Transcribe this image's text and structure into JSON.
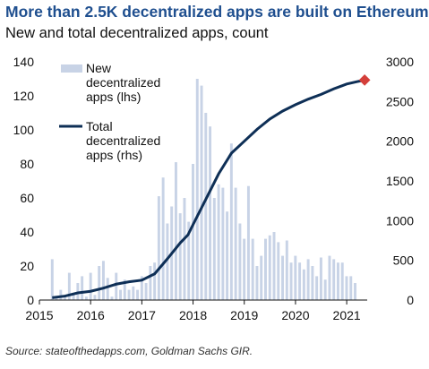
{
  "chart_data": {
    "type": "bar",
    "title": "More than 2.5K decentralized apps are built on Ethereum",
    "subtitle": "New and total decentralized apps, count",
    "source": "Source: stateofthedapps.com, Goldman Sachs GIR.",
    "x_ticks": [
      "2015",
      "2016",
      "2017",
      "2018",
      "2019",
      "2020",
      "2021"
    ],
    "y_left": {
      "ticks": [
        0,
        20,
        40,
        60,
        80,
        100,
        120,
        140
      ],
      "range": [
        0,
        140
      ]
    },
    "y_right": {
      "ticks": [
        0,
        500,
        1000,
        1500,
        2000,
        2500,
        3000
      ],
      "range": [
        0,
        3000
      ]
    },
    "x_range": [
      2015,
      2021.4
    ],
    "legend_placement": "top-center",
    "grid": false,
    "colors": {
      "bars": "#c8d3e6",
      "line": "#0e2f56",
      "marker": "#d43f3a",
      "title": "#1f4f8f"
    },
    "series": [
      {
        "name_lines": [
          "New",
          "decentralized",
          "apps (lhs)"
        ],
        "kind": "bar",
        "axis": "left",
        "x_start": 2015.25,
        "x_step": 0.0833,
        "values": [
          24,
          2,
          6,
          2,
          16,
          4,
          10,
          14,
          2,
          16,
          3,
          20,
          23,
          13,
          2,
          16,
          6,
          12,
          6,
          8,
          6,
          14,
          10,
          20,
          22,
          61,
          72,
          45,
          55,
          81,
          51,
          60,
          46,
          80,
          130,
          126,
          110,
          102,
          60,
          68,
          66,
          52,
          92,
          66,
          45,
          36,
          67,
          36,
          20,
          26,
          36,
          38,
          40,
          34,
          26,
          35,
          22,
          26,
          22,
          18,
          24,
          20,
          14,
          25,
          12,
          26,
          24,
          22,
          22,
          14,
          14,
          10
        ]
      },
      {
        "name_lines": [
          "Total",
          "decentralized",
          "apps (rhs)"
        ],
        "kind": "line",
        "axis": "right",
        "points": [
          [
            2015.25,
            30
          ],
          [
            2015.5,
            50
          ],
          [
            2015.75,
            90
          ],
          [
            2016.0,
            110
          ],
          [
            2016.25,
            150
          ],
          [
            2016.5,
            200
          ],
          [
            2016.75,
            230
          ],
          [
            2017.0,
            250
          ],
          [
            2017.25,
            330
          ],
          [
            2017.5,
            520
          ],
          [
            2017.75,
            720
          ],
          [
            2017.9,
            820
          ],
          [
            2018.0,
            950
          ],
          [
            2018.25,
            1270
          ],
          [
            2018.5,
            1590
          ],
          [
            2018.75,
            1850
          ],
          [
            2019.0,
            2000
          ],
          [
            2019.25,
            2150
          ],
          [
            2019.5,
            2280
          ],
          [
            2019.75,
            2380
          ],
          [
            2020.0,
            2460
          ],
          [
            2020.25,
            2530
          ],
          [
            2020.5,
            2590
          ],
          [
            2020.75,
            2660
          ],
          [
            2021.0,
            2720
          ],
          [
            2021.2,
            2750
          ],
          [
            2021.35,
            2770
          ]
        ]
      }
    ],
    "end_marker": {
      "x": 2021.35,
      "value": 2770
    }
  }
}
